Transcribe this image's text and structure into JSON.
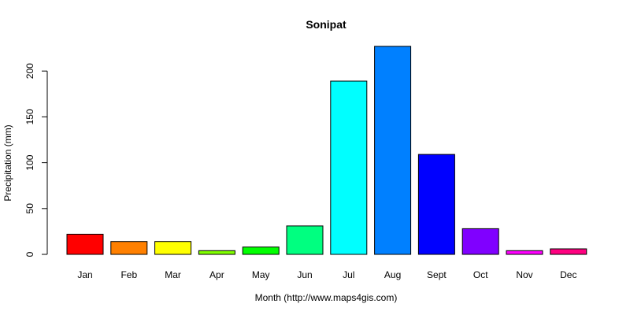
{
  "chart_data": {
    "type": "bar",
    "title": "Sonipat",
    "xlabel": "Month (http://www.maps4gis.com)",
    "ylabel": "Precipitation (mm)",
    "categories": [
      "Jan",
      "Feb",
      "Mar",
      "Apr",
      "May",
      "Jun",
      "Jul",
      "Aug",
      "Sept",
      "Oct",
      "Nov",
      "Dec"
    ],
    "values": [
      22,
      14,
      14,
      4,
      8,
      31,
      189,
      227,
      109,
      28,
      4,
      6
    ],
    "colors": [
      "#FF0000",
      "#FF8000",
      "#FFFF00",
      "#80FF00",
      "#00FF00",
      "#00FF80",
      "#00FFFF",
      "#0080FF",
      "#0000FF",
      "#8000FF",
      "#FF00FF",
      "#FF0080"
    ],
    "yticks": [
      0,
      50,
      100,
      150,
      200
    ],
    "ylim": [
      0,
      227
    ],
    "grid": false,
    "legend": "none"
  }
}
